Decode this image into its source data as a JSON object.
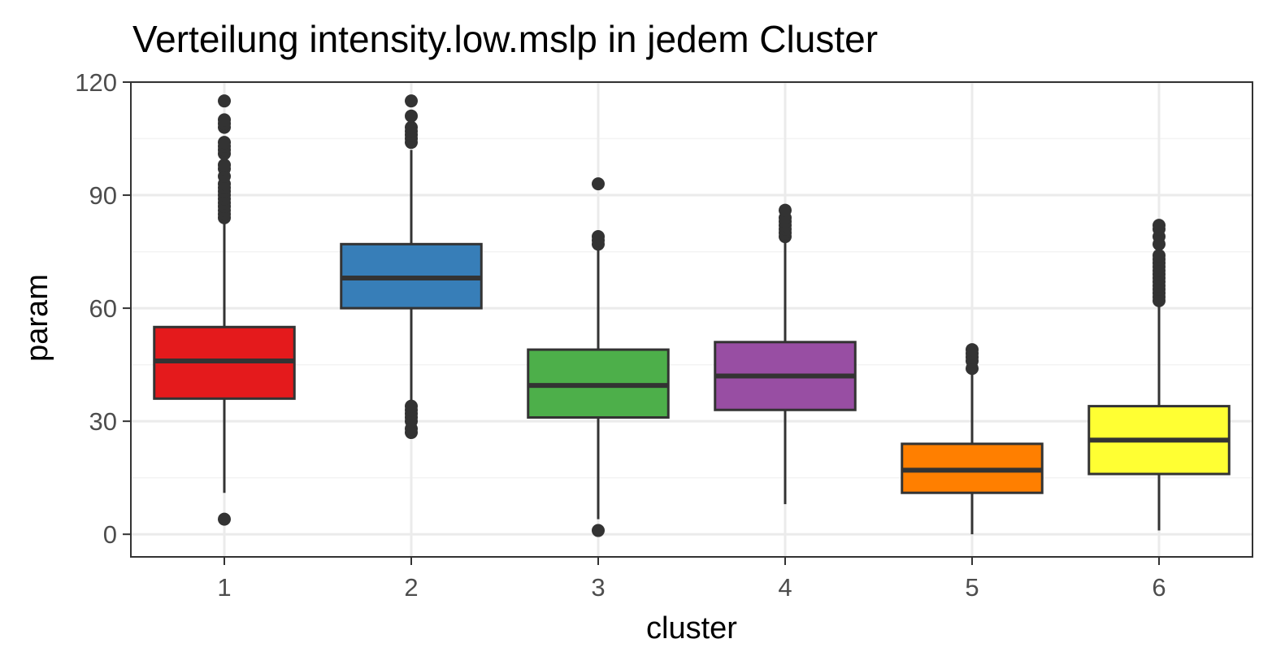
{
  "chart_data": {
    "type": "boxplot",
    "title": "Verteilung intensity.low.mslp in jedem Cluster",
    "xlabel": "cluster",
    "ylabel": "param",
    "ylim": [
      -6,
      120
    ],
    "yticks": [
      "0",
      "30",
      "60",
      "90",
      "120"
    ],
    "categories": [
      "1",
      "2",
      "3",
      "4",
      "5",
      "6"
    ],
    "grid": true,
    "legend": "none",
    "colors": {
      "box_stroke": "#333333",
      "grid_major": "#ebebeb",
      "grid_minor": "#f3f3f3",
      "panel_border": "#333333",
      "tick_text": "#4d4d4d"
    },
    "boxes": [
      {
        "cluster": "1",
        "fill": "#E41A1C",
        "whisker_low": 11,
        "q1": 36,
        "median": 46,
        "q3": 55,
        "whisker_high": 83,
        "outliers": [
          4,
          84,
          85,
          86,
          87,
          88,
          89,
          90,
          91,
          92,
          93,
          95,
          97,
          98,
          101,
          102,
          103,
          104,
          108,
          109,
          110,
          115
        ]
      },
      {
        "cluster": "2",
        "fill": "#377EB8",
        "whisker_low": 35,
        "q1": 60,
        "median": 68,
        "q3": 77,
        "whisker_high": 102,
        "outliers": [
          27,
          28,
          30,
          31,
          32,
          33,
          34,
          104,
          105,
          106,
          107,
          108,
          111,
          115
        ]
      },
      {
        "cluster": "3",
        "fill": "#4DAF4A",
        "whisker_low": 4,
        "q1": 31,
        "median": 39.5,
        "q3": 49,
        "whisker_high": 76,
        "outliers": [
          1,
          77,
          78,
          79,
          93
        ]
      },
      {
        "cluster": "4",
        "fill": "#984EA3",
        "whisker_low": 8,
        "q1": 33,
        "median": 42,
        "q3": 51,
        "whisker_high": 78,
        "outliers": [
          79,
          80,
          81,
          82,
          83,
          84,
          86
        ]
      },
      {
        "cluster": "5",
        "fill": "#FF7F00",
        "whisker_low": 0,
        "q1": 11,
        "median": 17,
        "q3": 24,
        "whisker_high": 43,
        "outliers": [
          44,
          46,
          47,
          48,
          49
        ]
      },
      {
        "cluster": "6",
        "fill": "#FFFF33",
        "whisker_low": 1,
        "q1": 16,
        "median": 25,
        "q3": 34,
        "whisker_high": 61,
        "outliers": [
          62,
          63,
          64,
          65,
          66,
          67,
          68,
          69,
          70,
          71,
          72,
          73,
          74,
          77,
          79,
          81,
          82
        ]
      }
    ]
  }
}
